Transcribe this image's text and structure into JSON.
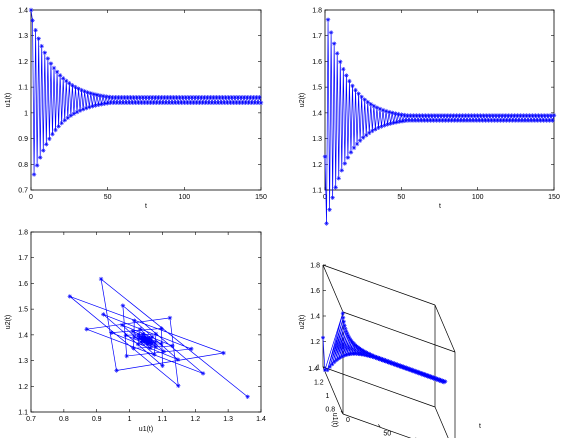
{
  "chart_data": [
    {
      "type": "line",
      "marker": "asterisk",
      "xlabel": "t",
      "ylabel": "u1(t)",
      "xlim": [
        0,
        150
      ],
      "ylim": [
        0.7,
        1.4
      ],
      "xticks": [
        "0",
        "50",
        "100",
        "150"
      ],
      "yticks": [
        "0.7",
        "0.8",
        "0.9",
        "1",
        "1.1",
        "1.2",
        "1.3",
        "1.4"
      ],
      "series": [
        {
          "equilibrium": 1.05,
          "initial": 1.4,
          "amplitude_start": 0.33,
          "decay_rate": 0.065,
          "amplitude_floor": 0.011,
          "period": 2,
          "t_end": 150
        }
      ]
    },
    {
      "type": "line",
      "marker": "asterisk",
      "xlabel": "t",
      "ylabel": "u2(t)",
      "xlim": [
        0,
        150
      ],
      "ylim": [
        1.1,
        1.8
      ],
      "xticks": [
        "0",
        "50",
        "100",
        "150"
      ],
      "yticks": [
        "1.1",
        "1.2",
        "1.3",
        "1.4",
        "1.5",
        "1.6",
        "1.7",
        "1.8"
      ],
      "series": [
        {
          "equilibrium": 1.38,
          "initial": 1.23,
          "amplitude_start": 0.44,
          "decay_rate": 0.07,
          "amplitude_floor": 0.01,
          "period": 2,
          "t_end": 150
        }
      ]
    },
    {
      "type": "line",
      "marker": "asterisk",
      "xlabel": "u1(t)",
      "ylabel": "u2(t)",
      "xlim": [
        0.7,
        1.4
      ],
      "ylim": [
        1.1,
        1.8
      ],
      "xticks": [
        "0.7",
        "0.8",
        "0.9",
        "1",
        "1.1",
        "1.2",
        "1.3",
        "1.4"
      ],
      "yticks": [
        "1.1",
        "1.2",
        "1.3",
        "1.4",
        "1.5",
        "1.6",
        "1.7",
        "1.8"
      ],
      "spiral": {
        "center": [
          1.05,
          1.38
        ],
        "initial": [
          1.4,
          1.23
        ],
        "radius_start": 0.38,
        "decay_rate": 0.07
      }
    },
    {
      "type": "line3d",
      "marker": "asterisk",
      "xlabel": "u1(t)",
      "ylabel": "t",
      "zlabel": "u2(t)",
      "xlim": [
        0.7,
        1.4
      ],
      "ylim": [
        0,
        150
      ],
      "zlim": [
        1,
        1.8
      ],
      "xticks": [
        "0.8",
        "1",
        "1.2",
        "1.4"
      ],
      "yticks": [
        "0",
        "50",
        "100",
        "150"
      ],
      "zticks": [
        "1",
        "1.2",
        "1.4",
        "1.6",
        "1.8"
      ]
    }
  ]
}
